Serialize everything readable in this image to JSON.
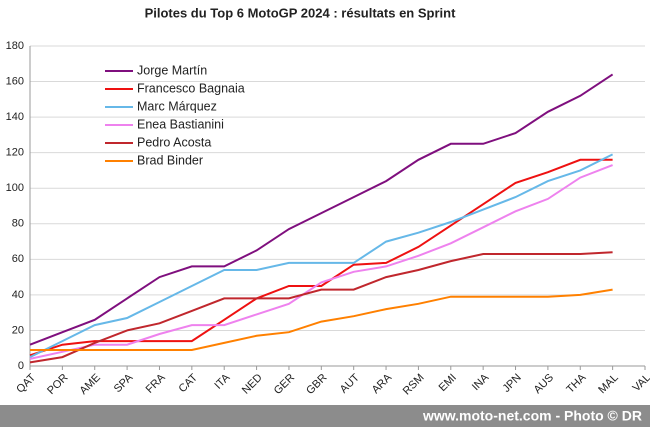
{
  "chart_data": {
    "type": "line",
    "title": "Pilotes du Top 6 MotoGP 2024 : résultats en Sprint",
    "categories": [
      "QAT",
      "POR",
      "AME",
      "SPA",
      "FRA",
      "CAT",
      "ITA",
      "NED",
      "GER",
      "GBR",
      "AUT",
      "ARA",
      "RSM",
      "EMI",
      "INA",
      "JPN",
      "AUS",
      "THA",
      "MAL",
      "VAL"
    ],
    "series": [
      {
        "name": "Jorge Martín",
        "color": "#7f0f7e",
        "values": [
          12,
          19,
          26,
          38,
          50,
          56,
          56,
          65,
          77,
          86,
          95,
          104,
          116,
          125,
          125,
          131,
          143,
          152,
          164,
          null
        ]
      },
      {
        "name": "Francesco Bagnaia",
        "color": "#ee1111",
        "values": [
          6,
          12,
          14,
          14,
          14,
          14,
          26,
          38,
          45,
          45,
          57,
          58,
          67,
          79,
          91,
          103,
          109,
          116,
          116,
          null
        ]
      },
      {
        "name": "Marc Márquez",
        "color": "#66b8e8",
        "values": [
          5,
          14,
          23,
          27,
          36,
          45,
          54,
          54,
          58,
          58,
          58,
          70,
          75,
          81,
          88,
          95,
          104,
          110,
          119,
          null
        ]
      },
      {
        "name": "Enea Bastianini",
        "color": "#ee82ee",
        "values": [
          4,
          8,
          12,
          12,
          18,
          23,
          23,
          29,
          35,
          47,
          53,
          56,
          62,
          69,
          78,
          87,
          94,
          106,
          113,
          null
        ]
      },
      {
        "name": "Pedro Acosta",
        "color": "#c0272d",
        "values": [
          2,
          5,
          13,
          20,
          24,
          31,
          38,
          38,
          38,
          43,
          43,
          50,
          54,
          59,
          63,
          63,
          63,
          63,
          64,
          null
        ]
      },
      {
        "name": "Brad Binder",
        "color": "#ff8000",
        "values": [
          9,
          9,
          9,
          9,
          9,
          9,
          13,
          17,
          19,
          25,
          28,
          32,
          35,
          39,
          39,
          39,
          39,
          40,
          43,
          null
        ]
      }
    ],
    "ylim": [
      0,
      180
    ],
    "yticks": [
      0,
      20,
      40,
      60,
      80,
      100,
      120,
      140,
      160,
      180
    ],
    "grid": true,
    "legend": "top-left",
    "footer": "www.moto-net.com - Photo © DR"
  }
}
